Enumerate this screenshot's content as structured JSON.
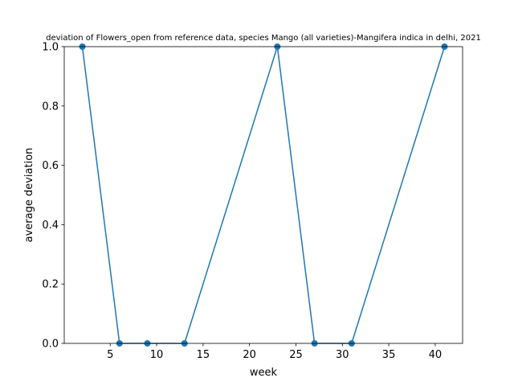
{
  "chart_data": {
    "type": "line",
    "title": "deviation of Flowers_open from reference data, species Mango (all varieties)-Mangifera indica in delhi, 2021",
    "xlabel": "week",
    "ylabel": "average deviation",
    "xlim": [
      0.05,
      42.95
    ],
    "ylim": [
      0,
      1
    ],
    "x_ticks": [
      5,
      10,
      15,
      20,
      25,
      30,
      35,
      40
    ],
    "y_ticks": [
      0.0,
      0.2,
      0.4,
      0.6,
      0.8,
      1.0
    ],
    "x_tick_labels": [
      "5",
      "10",
      "15",
      "20",
      "25",
      "30",
      "35",
      "40"
    ],
    "y_tick_labels": [
      "0.0",
      "0.2",
      "0.4",
      "0.6",
      "0.8",
      "1.0"
    ],
    "grid": false,
    "legend": "none",
    "series": [
      {
        "color": "#1f77b4",
        "marker": "circle",
        "x": [
          2,
          6,
          9,
          13,
          23,
          27,
          31,
          41
        ],
        "y": [
          1,
          0,
          0,
          0,
          1,
          0,
          0,
          1
        ]
      }
    ]
  }
}
